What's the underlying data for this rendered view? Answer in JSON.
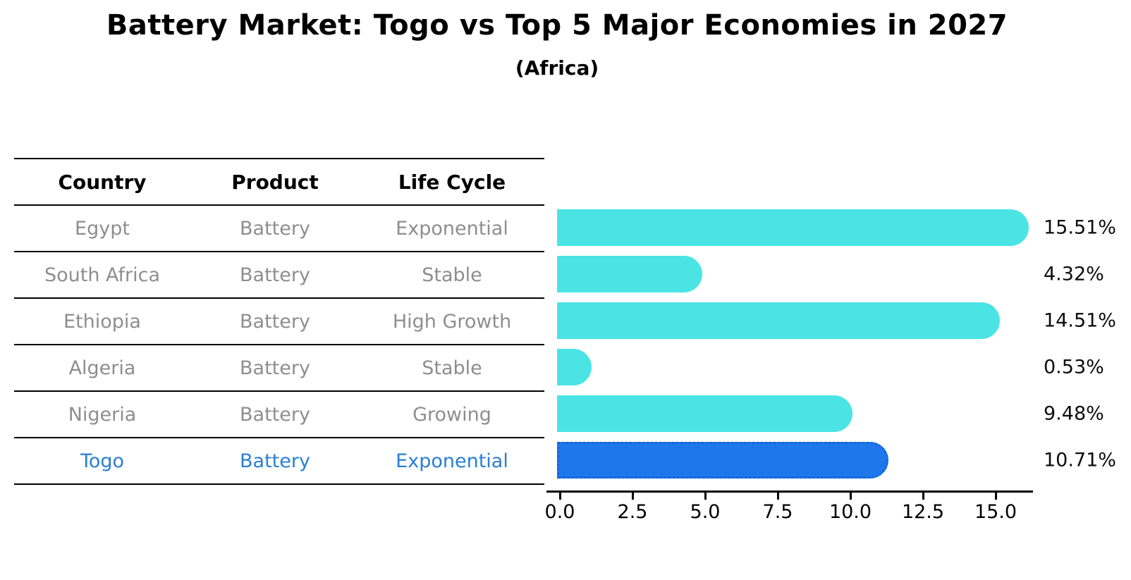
{
  "title": "Battery Market: Togo vs Top 5 Major Economies in 2027",
  "subtitle": "(Africa)",
  "table": {
    "headers": [
      "Country",
      "Product",
      "Life Cycle"
    ],
    "rows": [
      {
        "country": "Egypt",
        "product": "Battery",
        "life_cycle": "Exponential",
        "highlight": false
      },
      {
        "country": "South Africa",
        "product": "Battery",
        "life_cycle": "Stable",
        "highlight": false
      },
      {
        "country": "Ethiopia",
        "product": "Battery",
        "life_cycle": "High Growth",
        "highlight": false
      },
      {
        "country": "Algeria",
        "product": "Battery",
        "life_cycle": "Stable",
        "highlight": false
      },
      {
        "country": "Nigeria",
        "product": "Battery",
        "life_cycle": "Growing",
        "highlight": false
      },
      {
        "country": "Togo",
        "product": "Battery",
        "life_cycle": "Exponential",
        "highlight": true
      }
    ]
  },
  "chart_data": {
    "type": "bar",
    "orientation": "horizontal",
    "title": "Battery Market: Togo vs Top 5 Major Economies in 2027",
    "subtitle": "(Africa)",
    "categories": [
      "Egypt",
      "South Africa",
      "Ethiopia",
      "Algeria",
      "Nigeria",
      "Togo"
    ],
    "values": [
      15.51,
      4.32,
      14.51,
      0.53,
      9.48,
      10.71
    ],
    "value_labels": [
      "15.51%",
      "4.32%",
      "14.51%",
      "0.53%",
      "9.48%",
      "10.71%"
    ],
    "x_ticks": [
      "0.0",
      "2.5",
      "5.0",
      "7.5",
      "10.0",
      "12.5",
      "15.0"
    ],
    "x_tick_values": [
      0,
      2.5,
      5,
      7.5,
      10,
      12.5,
      15
    ],
    "xlim": [
      0,
      16.3
    ],
    "grid": false,
    "legend": false,
    "highlight_index": 5
  },
  "colors": {
    "bar": "#4ae4e4",
    "highlight_bar": "#1e78ec",
    "highlight_border": "#1563d6",
    "highlight_text": "#2a7fd4",
    "row_text": "#8e8e8e",
    "axis": "#000000"
  }
}
